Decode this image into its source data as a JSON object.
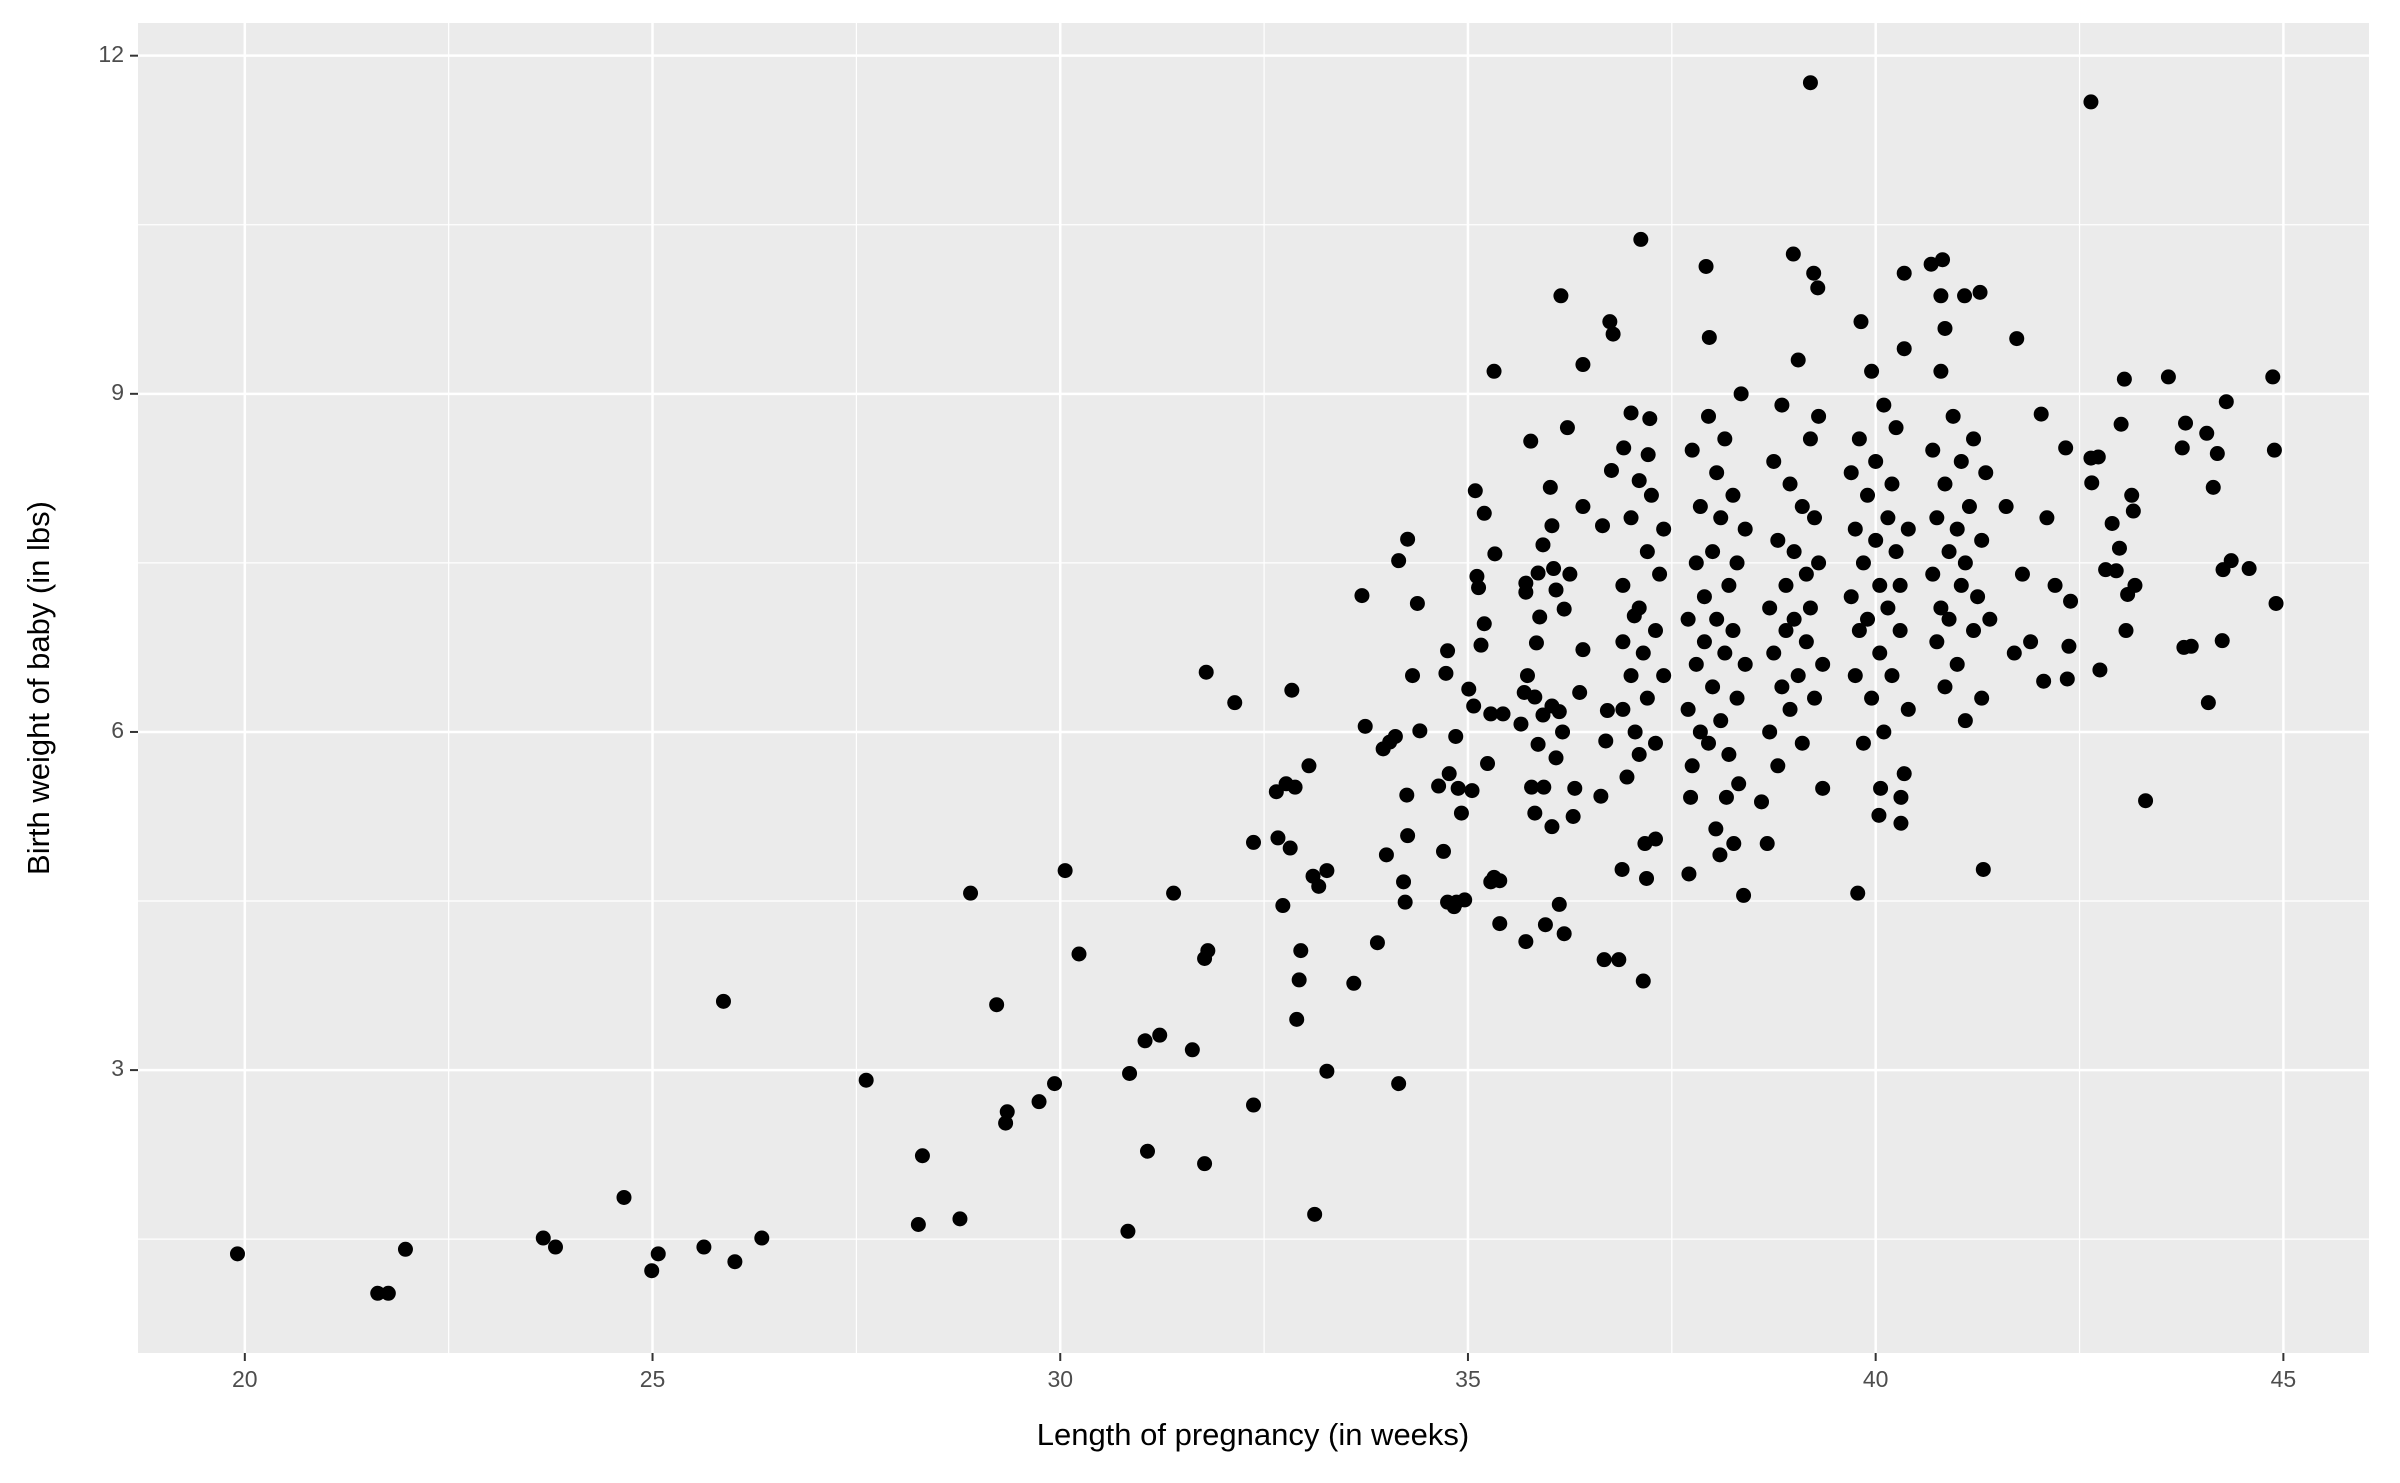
{
  "chart_data": {
    "type": "scatter",
    "x_label": "Length of pregnancy (in weeks)",
    "y_label": "Birth weight of baby (in lbs)",
    "xlim": [
      18.69,
      46.05
    ],
    "ylim": [
      0.49,
      12.29
    ],
    "xticks": [
      20,
      25,
      30,
      35,
      40,
      45
    ],
    "yticks": [
      3,
      6,
      9,
      12
    ],
    "x_minor_ticks": [
      22.5,
      27.5,
      32.5,
      37.5,
      42.5
    ],
    "y_minor_ticks": [
      1.5,
      4.5,
      7.5,
      10.5
    ],
    "grid": true,
    "color": "#000000",
    "panel_color": "#ebebeb",
    "x": [
      19.91,
      21.63,
      21.76,
      21.97,
      23.66,
      23.81,
      24.65,
      24.99,
      25.07,
      25.63,
      25.87,
      26.01,
      26.34,
      27.62,
      28.26,
      28.31,
      28.77,
      28.9,
      29.22,
      29.33,
      29.35,
      29.74,
      29.93,
      30.06,
      30.23,
      30.83,
      30.85,
      31.04,
      31.07,
      31.22,
      31.39,
      31.62,
      31.77,
      31.77,
      31.81,
      31.79,
      32.14,
      32.37,
      32.37,
      32.65,
      32.67,
      32.73,
      32.77,
      32.82,
      32.88,
      32.84,
      32.9,
      32.93,
      32.95,
      33.05,
      33.1,
      33.12,
      33.17,
      33.27,
      33.27,
      33.6,
      33.7,
      33.74,
      33.89,
      33.96,
      34.0,
      34.04,
      34.11,
      34.15,
      34.15,
      34.21,
      34.23,
      34.25,
      34.26,
      34.26,
      34.32,
      34.38,
      34.41,
      34.64,
      34.7,
      34.73,
      34.75,
      34.75,
      34.77,
      34.83,
      34.85,
      34.86,
      34.88,
      34.92,
      34.96,
      35.01,
      35.05,
      35.07,
      35.09,
      35.11,
      35.13,
      35.16,
      35.2,
      35.2,
      35.24,
      35.28,
      35.28,
      35.32,
      35.32,
      35.33,
      35.39,
      35.39,
      35.43,
      35.65,
      35.69,
      35.71,
      35.71,
      35.71,
      35.73,
      35.77,
      35.78,
      35.82,
      35.82,
      35.84,
      35.86,
      35.86,
      35.88,
      35.92,
      35.92,
      35.93,
      35.95,
      36.01,
      36.03,
      36.03,
      36.03,
      36.05,
      36.08,
      36.08,
      36.12,
      36.12,
      36.14,
      36.16,
      36.18,
      36.18,
      36.22,
      36.25,
      36.29,
      36.31,
      36.37,
      36.41,
      36.41,
      36.41,
      36.63,
      36.65,
      36.67,
      36.69,
      36.71,
      36.74,
      36.76,
      36.78,
      36.85,
      36.89,
      36.91,
      37.0,
      37.04,
      37.1,
      37.12,
      37.15,
      37.17,
      37.19,
      37.21,
      37.23,
      37.3,
      37.71,
      37.73,
      37.92,
      37.96,
      38.04,
      38.09,
      38.17,
      38.26,
      38.32,
      38.38,
      38.6,
      38.67,
      38.99,
      39.2,
      39.24,
      39.29,
      39.78,
      39.82,
      40.04,
      40.06,
      40.31,
      40.31,
      40.35,
      40.35,
      40.68,
      40.82,
      40.8,
      40.85,
      41.09,
      41.28,
      41.32,
      41.73,
      42.03,
      42.06,
      42.33,
      42.35,
      42.37,
      42.39,
      42.64,
      42.64,
      42.73,
      42.65,
      42.75,
      42.82,
      42.9,
      42.95,
      42.99,
      43.01,
      43.05,
      43.07,
      43.09,
      43.14,
      43.16,
      43.18,
      43.31,
      43.59,
      43.76,
      43.78,
      43.8,
      43.87,
      44.06,
      44.08,
      44.14,
      44.19,
      44.25,
      44.26,
      44.3,
      44.36,
      44.58,
      44.87,
      44.89,
      44.91,
      36.9,
      36.9,
      36.9,
      36.95,
      37.0,
      37.0,
      37.05,
      37.1,
      37.1,
      37.15,
      37.2,
      37.2,
      37.25,
      37.3,
      37.3,
      37.35,
      37.4,
      37.4,
      37.7,
      37.7,
      37.75,
      37.75,
      37.8,
      37.8,
      37.85,
      37.85,
      37.9,
      37.9,
      37.95,
      37.95,
      38.0,
      38.0,
      38.05,
      38.05,
      38.1,
      38.1,
      38.15,
      38.15,
      38.2,
      38.2,
      38.25,
      38.25,
      38.3,
      38.3,
      38.35,
      38.4,
      38.4,
      38.7,
      38.7,
      38.75,
      38.75,
      38.8,
      38.8,
      38.85,
      38.85,
      38.9,
      38.9,
      38.95,
      38.95,
      39.0,
      39.0,
      39.05,
      39.05,
      39.1,
      39.1,
      39.15,
      39.15,
      39.2,
      39.2,
      39.25,
      39.25,
      39.3,
      39.3,
      39.35,
      39.35,
      39.7,
      39.7,
      39.75,
      39.75,
      39.8,
      39.8,
      39.85,
      39.85,
      39.9,
      39.9,
      39.95,
      39.95,
      40.0,
      40.0,
      40.05,
      40.05,
      40.1,
      40.1,
      40.15,
      40.15,
      40.2,
      40.2,
      40.25,
      40.25,
      40.3,
      40.3,
      40.35,
      40.4,
      40.4,
      40.7,
      40.7,
      40.75,
      40.75,
      40.8,
      40.8,
      40.85,
      40.85,
      40.9,
      40.9,
      40.95,
      41.0,
      41.0,
      41.05,
      41.05,
      41.1,
      41.1,
      41.15,
      41.2,
      41.2,
      41.25,
      41.3,
      41.3,
      41.35,
      41.4,
      41.8,
      41.9,
      42.1,
      42.2,
      41.6,
      41.7
    ],
    "values": [
      1.37,
      1.02,
      1.02,
      1.41,
      1.51,
      1.43,
      1.87,
      1.22,
      1.37,
      1.43,
      3.61,
      1.3,
      1.51,
      2.91,
      1.63,
      2.24,
      1.68,
      4.57,
      3.58,
      2.53,
      2.63,
      2.72,
      2.88,
      4.77,
      4.03,
      1.57,
      2.97,
      3.26,
      2.28,
      3.31,
      4.57,
      3.18,
      2.17,
      3.99,
      4.06,
      6.53,
      6.26,
      2.69,
      5.02,
      5.47,
      5.06,
      4.46,
      5.54,
      4.97,
      5.51,
      6.37,
      3.45,
      3.8,
      4.06,
      5.7,
      4.72,
      1.72,
      4.63,
      4.77,
      2.99,
      3.77,
      7.21,
      6.05,
      4.13,
      5.85,
      4.91,
      5.91,
      5.96,
      2.88,
      7.52,
      4.67,
      4.49,
      5.44,
      5.08,
      7.71,
      6.5,
      7.14,
      6.01,
      5.52,
      4.94,
      6.52,
      6.72,
      4.49,
      5.63,
      4.45,
      5.96,
      4.49,
      5.5,
      5.28,
      4.51,
      6.38,
      5.48,
      6.23,
      8.14,
      7.38,
      7.28,
      6.77,
      6.96,
      7.94,
      5.72,
      4.67,
      6.16,
      9.2,
      4.71,
      7.58,
      4.68,
      4.3,
      6.16,
      6.07,
      6.35,
      4.14,
      7.32,
      7.24,
      6.5,
      8.58,
      5.51,
      5.28,
      6.31,
      6.79,
      7.41,
      5.89,
      7.02,
      6.15,
      7.66,
      5.51,
      4.29,
      8.17,
      5.16,
      6.23,
      7.83,
      7.45,
      7.26,
      5.77,
      4.47,
      6.18,
      9.87,
      6.0,
      4.21,
      7.09,
      8.7,
      7.4,
      5.25,
      5.5,
      6.35,
      6.73,
      9.26,
      8.0,
      5.43,
      7.83,
      3.98,
      5.92,
      6.19,
      9.64,
      8.32,
      9.53,
      3.98,
      4.78,
      8.52,
      8.83,
      7.03,
      8.23,
      10.37,
      3.79,
      5.01,
      4.7,
      8.46,
      8.78,
      5.05,
      4.74,
      5.42,
      10.13,
      9.5,
      5.14,
      4.91,
      5.42,
      5.01,
      5.54,
      4.55,
      5.38,
      5.01,
      10.24,
      11.76,
      10.07,
      9.94,
      4.57,
      9.64,
      5.26,
      5.5,
      5.19,
      5.42,
      5.63,
      10.07,
      10.15,
      10.19,
      9.87,
      9.58,
      9.87,
      9.9,
      4.78,
      9.49,
      8.82,
      6.45,
      8.52,
      6.47,
      6.76,
      7.16,
      11.59,
      8.43,
      8.44,
      8.21,
      6.55,
      7.44,
      7.85,
      7.43,
      7.63,
      8.73,
      9.13,
      6.9,
      7.22,
      8.1,
      7.96,
      7.3,
      5.39,
      9.15,
      8.52,
      6.75,
      8.74,
      6.76,
      8.65,
      6.26,
      8.17,
      8.47,
      6.81,
      7.44,
      8.93,
      7.52,
      7.45,
      9.15,
      8.5,
      7.14,
      6.2,
      6.8,
      7.3,
      5.6,
      6.5,
      7.9,
      6.0,
      7.1,
      5.8,
      6.7,
      7.6,
      6.3,
      8.1,
      5.9,
      6.9,
      7.4,
      6.5,
      7.8,
      6.2,
      7.0,
      8.5,
      5.7,
      6.6,
      7.5,
      8.0,
      6.0,
      7.2,
      6.8,
      8.8,
      5.9,
      7.6,
      6.4,
      8.3,
      7.0,
      6.1,
      7.9,
      6.7,
      8.6,
      7.3,
      5.8,
      6.9,
      8.1,
      7.5,
      6.3,
      9.0,
      6.6,
      7.8,
      6.0,
      7.1,
      8.4,
      6.7,
      7.7,
      5.7,
      6.4,
      8.9,
      7.3,
      6.9,
      8.2,
      6.2,
      7.6,
      7.0,
      9.3,
      6.5,
      8.0,
      5.9,
      7.4,
      6.8,
      8.6,
      7.1,
      6.3,
      7.9,
      7.5,
      8.8,
      6.6,
      5.5,
      7.2,
      8.3,
      6.5,
      7.8,
      8.6,
      6.9,
      7.5,
      5.9,
      8.1,
      7.0,
      9.2,
      6.3,
      7.7,
      8.4,
      6.7,
      7.3,
      8.9,
      6.0,
      7.9,
      7.1,
      8.2,
      6.5,
      7.6,
      8.7,
      6.9,
      7.3,
      9.4,
      7.8,
      6.2,
      7.4,
      8.5,
      6.8,
      7.9,
      7.1,
      9.2,
      6.4,
      8.2,
      7.6,
      7.0,
      8.8,
      6.6,
      7.8,
      7.3,
      8.4,
      6.1,
      7.5,
      8.0,
      6.9,
      8.6,
      7.2,
      7.7,
      6.3,
      8.3,
      7.0,
      7.4,
      6.8,
      7.9,
      7.3,
      8.0,
      6.7
    ]
  }
}
